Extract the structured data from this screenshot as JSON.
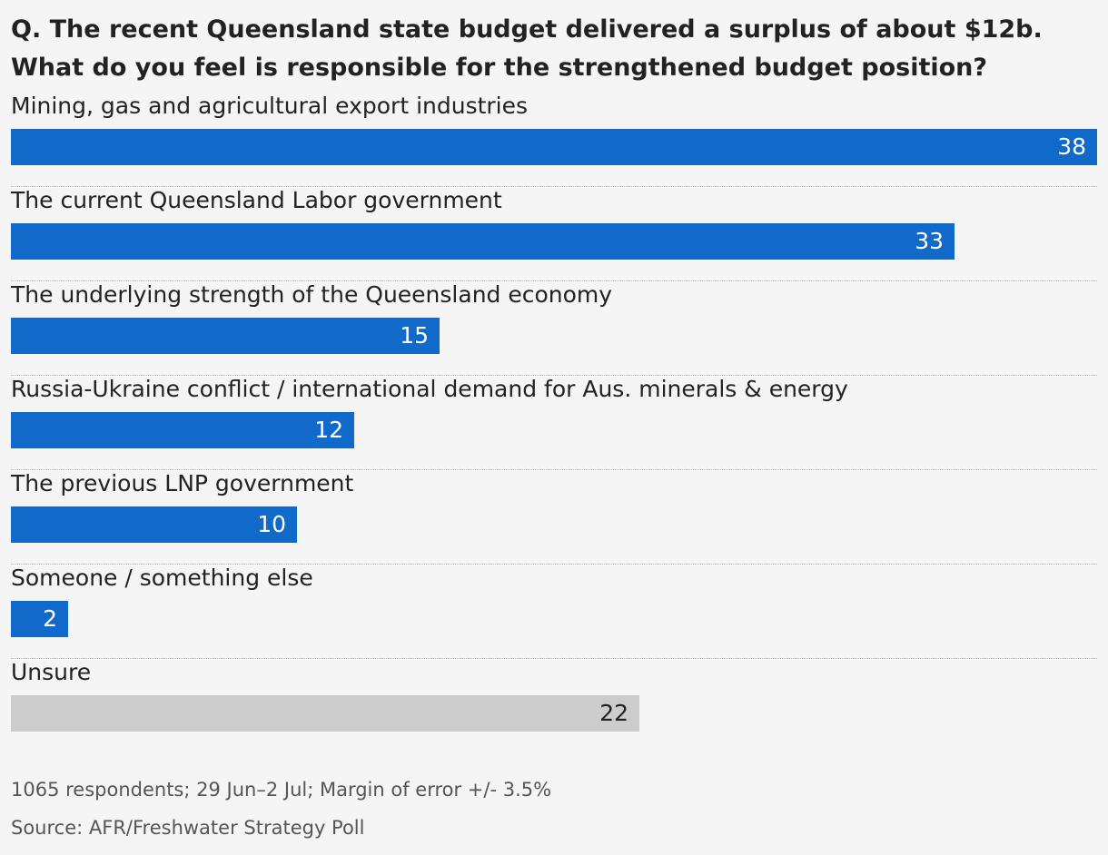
{
  "chart_data": {
    "type": "bar",
    "orientation": "horizontal",
    "title": "Q. The recent Queensland state budget delivered a surplus of about $12b. What do you feel is responsible for the strengthened budget position?",
    "categories": [
      "Mining, gas and agricultural export industries",
      "The current Queensland Labor government",
      "The underlying strength of the Queensland economy",
      "Russia-Ukraine conflict / international demand for Aus. minerals & energy",
      "The previous LNP government",
      "Someone / something else",
      "Unsure"
    ],
    "values": [
      38,
      33,
      15,
      12,
      10,
      2,
      22
    ],
    "xlim": [
      0,
      38
    ],
    "grid": false,
    "colors": {
      "bar": "#116ac9",
      "bar_unsure": "#cccccc",
      "background": "#f5f5f5"
    }
  },
  "footer": {
    "note": "1065 respondents; 29 Jun–2 Jul; Margin of error +/- 3.5%",
    "source": "Source: AFR/Freshwater Strategy Poll"
  }
}
